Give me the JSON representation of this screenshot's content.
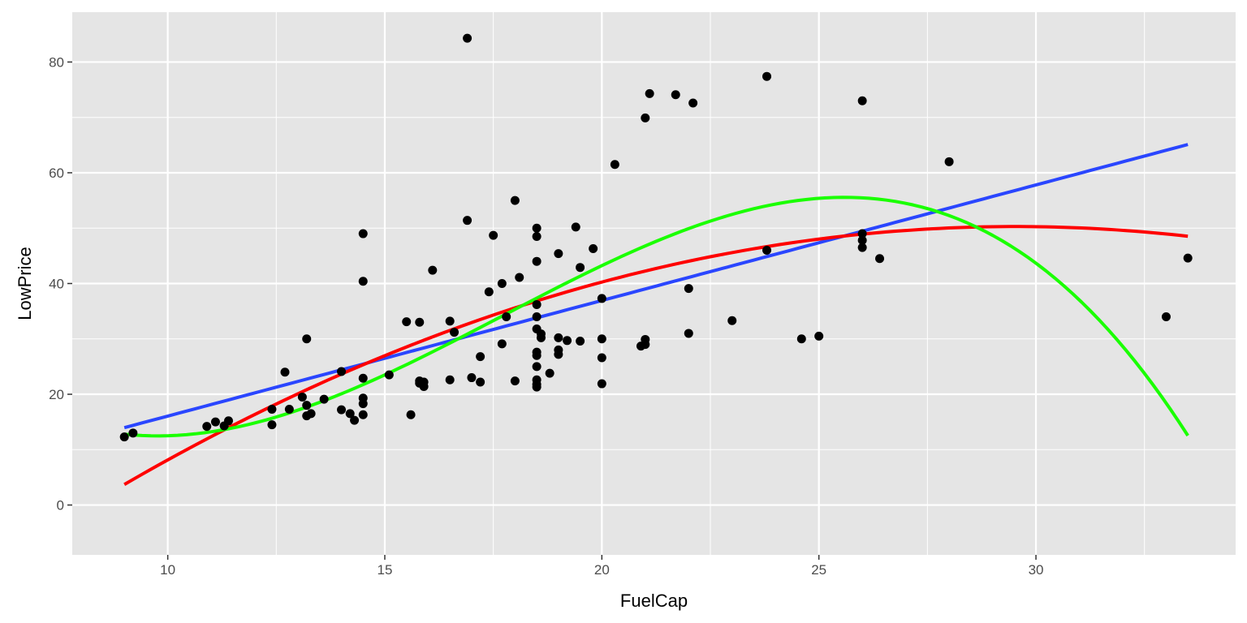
{
  "chart_data": {
    "type": "scatter",
    "title": "",
    "xlabel": "FuelCap",
    "ylabel": "LowPrice",
    "xlim": [
      7.8,
      34.6
    ],
    "ylim": [
      -9,
      89
    ],
    "x_ticks": [
      10,
      15,
      20,
      25,
      30
    ],
    "y_ticks": [
      0,
      20,
      40,
      60,
      80
    ],
    "grid": true,
    "legend": "none",
    "colors": {
      "panel": "#e5e5e5",
      "grid": "#ffffff",
      "points": "#000000",
      "linear": "#2a46ff",
      "quadratic": "#ff0000",
      "cubic": "#1aff00"
    },
    "points": [
      [
        9.0,
        12.3
      ],
      [
        9.2,
        13.0
      ],
      [
        10.9,
        14.2
      ],
      [
        11.1,
        15.0
      ],
      [
        11.3,
        14.3
      ],
      [
        11.4,
        15.2
      ],
      [
        12.4,
        14.5
      ],
      [
        12.4,
        17.3
      ],
      [
        12.7,
        24.0
      ],
      [
        12.8,
        17.3
      ],
      [
        13.1,
        19.5
      ],
      [
        13.2,
        30.0
      ],
      [
        13.2,
        16.1
      ],
      [
        13.2,
        18.0
      ],
      [
        13.3,
        16.5
      ],
      [
        13.6,
        19.1
      ],
      [
        14.0,
        17.2
      ],
      [
        14.0,
        24.1
      ],
      [
        14.2,
        16.5
      ],
      [
        14.3,
        15.3
      ],
      [
        14.5,
        49.0
      ],
      [
        14.5,
        40.4
      ],
      [
        14.5,
        22.9
      ],
      [
        14.5,
        19.3
      ],
      [
        14.5,
        18.3
      ],
      [
        14.5,
        16.3
      ],
      [
        15.1,
        23.5
      ],
      [
        15.5,
        33.1
      ],
      [
        15.6,
        16.3
      ],
      [
        15.8,
        33.0
      ],
      [
        15.8,
        22.4
      ],
      [
        15.8,
        22.0
      ],
      [
        15.9,
        22.2
      ],
      [
        15.9,
        21.4
      ],
      [
        16.1,
        42.4
      ],
      [
        16.5,
        33.2
      ],
      [
        16.5,
        22.6
      ],
      [
        16.6,
        31.2
      ],
      [
        16.9,
        84.3
      ],
      [
        16.9,
        51.4
      ],
      [
        17.0,
        23.0
      ],
      [
        17.2,
        26.8
      ],
      [
        17.2,
        22.2
      ],
      [
        17.4,
        38.5
      ],
      [
        17.5,
        48.7
      ],
      [
        17.7,
        40.0
      ],
      [
        17.7,
        29.1
      ],
      [
        17.8,
        34.0
      ],
      [
        18.0,
        55.0
      ],
      [
        18.0,
        22.4
      ],
      [
        18.1,
        41.1
      ],
      [
        18.5,
        50.0
      ],
      [
        18.5,
        48.5
      ],
      [
        18.5,
        44.0
      ],
      [
        18.5,
        36.2
      ],
      [
        18.5,
        34.0
      ],
      [
        18.5,
        31.8
      ],
      [
        18.5,
        27.6
      ],
      [
        18.5,
        27.0
      ],
      [
        18.5,
        25.0
      ],
      [
        18.5,
        22.6
      ],
      [
        18.5,
        21.8
      ],
      [
        18.5,
        21.3
      ],
      [
        18.6,
        30.9
      ],
      [
        18.6,
        30.2
      ],
      [
        18.8,
        23.8
      ],
      [
        19.0,
        45.4
      ],
      [
        19.0,
        30.2
      ],
      [
        19.0,
        28.0
      ],
      [
        19.0,
        27.2
      ],
      [
        19.2,
        29.7
      ],
      [
        19.4,
        50.2
      ],
      [
        19.5,
        42.9
      ],
      [
        19.5,
        29.6
      ],
      [
        19.8,
        46.3
      ],
      [
        20.0,
        37.3
      ],
      [
        20.0,
        30.0
      ],
      [
        20.0,
        26.6
      ],
      [
        20.0,
        21.9
      ],
      [
        20.3,
        61.5
      ],
      [
        20.9,
        28.7
      ],
      [
        21.0,
        69.9
      ],
      [
        21.0,
        29.9
      ],
      [
        21.0,
        29.0
      ],
      [
        21.1,
        74.3
      ],
      [
        21.7,
        74.1
      ],
      [
        22.0,
        39.1
      ],
      [
        22.0,
        31.0
      ],
      [
        22.1,
        72.6
      ],
      [
        23.0,
        33.3
      ],
      [
        23.8,
        77.4
      ],
      [
        23.8,
        46.0
      ],
      [
        24.6,
        30.0
      ],
      [
        25.0,
        30.5
      ],
      [
        26.0,
        73.0
      ],
      [
        26.0,
        49.0
      ],
      [
        26.0,
        47.8
      ],
      [
        26.0,
        46.5
      ],
      [
        26.4,
        44.5
      ],
      [
        28.0,
        62.0
      ],
      [
        33.0,
        34.0
      ],
      [
        33.5,
        44.6
      ]
    ],
    "series": [
      {
        "name": "",
        "color": "#2a46ff",
        "model": "linear",
        "coefficients": [
          -4.81,
          2.087
        ],
        "domain": [
          9.0,
          33.5
        ]
      },
      {
        "name": "",
        "color": "#ff0000",
        "model": "quadratic",
        "coefficients": [
          -46.1,
          6.53,
          -0.1106
        ],
        "domain": [
          9.0,
          33.5
        ]
      },
      {
        "name": "",
        "color": "#1aff00",
        "model": "cubic",
        "coefficients": [
          81.95,
          -16.3,
          1.153,
          -0.02174
        ],
        "domain": [
          9.0,
          33.5
        ]
      }
    ]
  }
}
